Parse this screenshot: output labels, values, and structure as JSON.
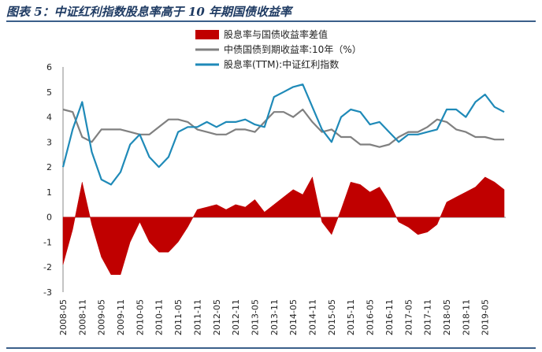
{
  "figure_title": "图表 5：中证红利指数股息率高于 10 年期国债收益率",
  "colors": {
    "spread": "#c00000",
    "bond": "#808080",
    "dividend": "#1f8ab8",
    "rule": "#3b5f8a"
  },
  "chart_data": {
    "type": "line",
    "title": "",
    "xlabel": "",
    "ylabel": "",
    "ylim": [
      -3,
      6
    ],
    "yticks": [
      -3,
      -2,
      -1,
      0,
      1,
      2,
      3,
      4,
      5,
      6
    ],
    "grid": false,
    "legend_position": "top",
    "x": [
      "2008-05",
      "2008-08",
      "2008-11",
      "2009-02",
      "2009-05",
      "2009-08",
      "2009-11",
      "2010-02",
      "2010-05",
      "2010-08",
      "2010-11",
      "2011-02",
      "2011-05",
      "2011-08",
      "2011-11",
      "2012-02",
      "2012-05",
      "2012-08",
      "2012-11",
      "2013-02",
      "2013-05",
      "2013-08",
      "2013-11",
      "2014-02",
      "2014-05",
      "2014-08",
      "2014-11",
      "2015-02",
      "2015-05",
      "2015-08",
      "2015-11",
      "2016-02",
      "2016-05",
      "2016-08",
      "2016-11",
      "2017-02",
      "2017-05",
      "2017-08",
      "2017-11",
      "2018-02",
      "2018-05",
      "2018-08",
      "2018-11",
      "2019-02",
      "2019-05",
      "2019-08",
      "2019-11"
    ],
    "x_tick_labels": [
      "2008-05",
      "2008-11",
      "2009-05",
      "2009-11",
      "2010-05",
      "2010-11",
      "2011-05",
      "2011-11",
      "2012-05",
      "2012-11",
      "2013-05",
      "2013-11",
      "2014-05",
      "2014-11",
      "2015-05",
      "2015-11",
      "2016-05",
      "2016-11",
      "2017-05",
      "2017-11",
      "2018-05",
      "2018-11",
      "2019-05"
    ],
    "series": [
      {
        "name": "股息率与国债收益率差值",
        "kind": "area",
        "values": [
          -1.9,
          -0.5,
          1.4,
          -0.3,
          -1.6,
          -2.3,
          -2.3,
          -1.0,
          -0.2,
          -1.0,
          -1.4,
          -1.4,
          -1.0,
          -0.4,
          0.3,
          0.4,
          0.5,
          0.3,
          0.5,
          0.4,
          0.7,
          0.2,
          0.5,
          0.8,
          1.1,
          0.9,
          1.6,
          -0.2,
          -0.7,
          0.3,
          1.4,
          1.3,
          1.0,
          1.2,
          0.6,
          -0.2,
          -0.4,
          -0.7,
          -0.6,
          -0.3,
          0.6,
          0.8,
          1.0,
          1.2,
          1.6,
          1.4,
          1.1
        ]
      },
      {
        "name": "中债国债到期收益率:10年（%）",
        "kind": "line",
        "values": [
          4.3,
          4.2,
          3.2,
          3.0,
          3.5,
          3.5,
          3.5,
          3.4,
          3.3,
          3.3,
          3.6,
          3.9,
          3.9,
          3.8,
          3.5,
          3.4,
          3.3,
          3.3,
          3.5,
          3.5,
          3.4,
          3.8,
          4.2,
          4.2,
          4.0,
          4.3,
          3.8,
          3.4,
          3.5,
          3.2,
          3.2,
          2.9,
          2.9,
          2.8,
          2.9,
          3.2,
          3.4,
          3.4,
          3.6,
          3.9,
          3.8,
          3.5,
          3.4,
          3.2,
          3.2,
          3.1,
          3.1
        ]
      },
      {
        "name": "股息率(TTM):中证红利指数",
        "kind": "line",
        "values": [
          2.0,
          3.5,
          4.6,
          2.6,
          1.5,
          1.3,
          1.8,
          2.9,
          3.3,
          2.4,
          2.0,
          2.4,
          3.4,
          3.6,
          3.6,
          3.8,
          3.6,
          3.8,
          3.8,
          3.9,
          3.7,
          3.6,
          4.8,
          5.0,
          5.2,
          5.3,
          4.4,
          3.5,
          3.0,
          4.0,
          4.3,
          4.2,
          3.7,
          3.8,
          3.4,
          3.0,
          3.3,
          3.3,
          3.4,
          3.5,
          4.3,
          4.3,
          4.0,
          4.6,
          4.9,
          4.4,
          4.2
        ]
      }
    ]
  }
}
